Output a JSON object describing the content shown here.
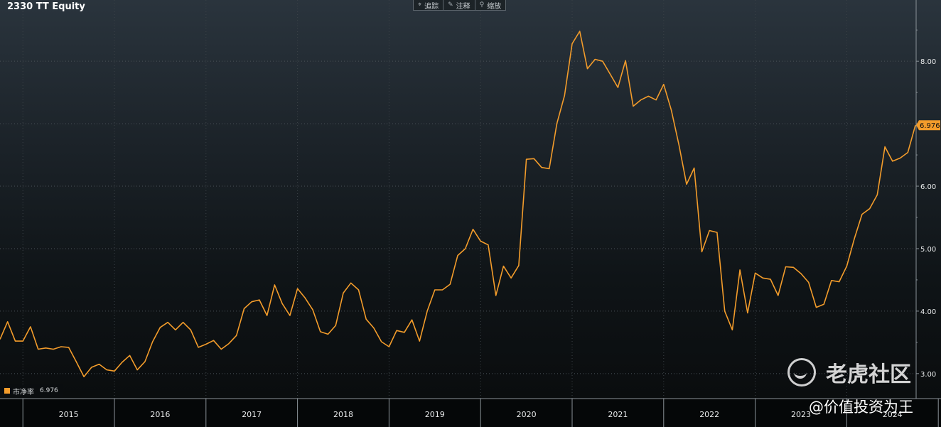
{
  "title": "2330 TT Equity",
  "toolbar": [
    {
      "icon": "crosshair-icon",
      "glyph": "⌖",
      "label": "追踪"
    },
    {
      "icon": "pencil-icon",
      "glyph": "✎",
      "label": "注释"
    },
    {
      "icon": "zoom-icon",
      "glyph": "⚲",
      "label": "缩放"
    }
  ],
  "legend": {
    "label": "市净率",
    "value": "6.976",
    "color": "#f39c2b"
  },
  "watermark": {
    "brand": "老虎社区",
    "handle": "@价值投资为王"
  },
  "chart_data": {
    "type": "line",
    "title": "2330 TT Equity",
    "series": [
      {
        "name": "市净率",
        "color": "#f39c2b",
        "last_value_label": "6.976"
      }
    ],
    "x_start": 2014.75,
    "x_end": 2024.75,
    "x_step_months": 1,
    "ylim": [
      2.6,
      8.98
    ],
    "yticks": [
      3.0,
      4.0,
      5.0,
      6.0,
      7.0,
      8.0
    ],
    "ytick_labels": [
      "3.00",
      "4.00",
      "5.00",
      "6.00",
      "",
      "8.00"
    ],
    "xticks": [
      "2015",
      "2016",
      "2017",
      "2018",
      "2019",
      "2020",
      "2021",
      "2022",
      "2023",
      "2024"
    ],
    "values": [
      3.55,
      3.83,
      3.52,
      3.52,
      3.75,
      3.39,
      3.41,
      3.39,
      3.43,
      3.42,
      3.19,
      2.95,
      3.1,
      3.15,
      3.06,
      3.04,
      3.18,
      3.29,
      3.06,
      3.19,
      3.51,
      3.74,
      3.82,
      3.7,
      3.82,
      3.7,
      3.42,
      3.47,
      3.53,
      3.39,
      3.48,
      3.61,
      4.04,
      4.15,
      4.18,
      3.93,
      4.42,
      4.12,
      3.93,
      4.36,
      4.21,
      4.02,
      3.67,
      3.63,
      3.77,
      4.29,
      4.45,
      4.34,
      3.87,
      3.73,
      3.51,
      3.43,
      3.69,
      3.66,
      3.86,
      3.52,
      4.0,
      4.34,
      4.34,
      4.43,
      4.89,
      5.0,
      5.31,
      5.12,
      5.06,
      4.25,
      4.72,
      4.53,
      4.73,
      6.43,
      6.44,
      6.3,
      6.28,
      7.0,
      7.45,
      8.28,
      8.48,
      7.88,
      8.03,
      8.0,
      7.79,
      7.58,
      8.01,
      7.28,
      7.38,
      7.44,
      7.38,
      7.63,
      7.22,
      6.66,
      6.03,
      6.29,
      4.95,
      5.29,
      5.26,
      4.0,
      3.7,
      4.66,
      3.97,
      4.61,
      4.53,
      4.51,
      4.25,
      4.71,
      4.7,
      4.6,
      4.46,
      4.06,
      4.11,
      4.49,
      4.47,
      4.72,
      5.16,
      5.55,
      5.64,
      5.86,
      6.63,
      6.4,
      6.45,
      6.54,
      6.976
    ]
  }
}
